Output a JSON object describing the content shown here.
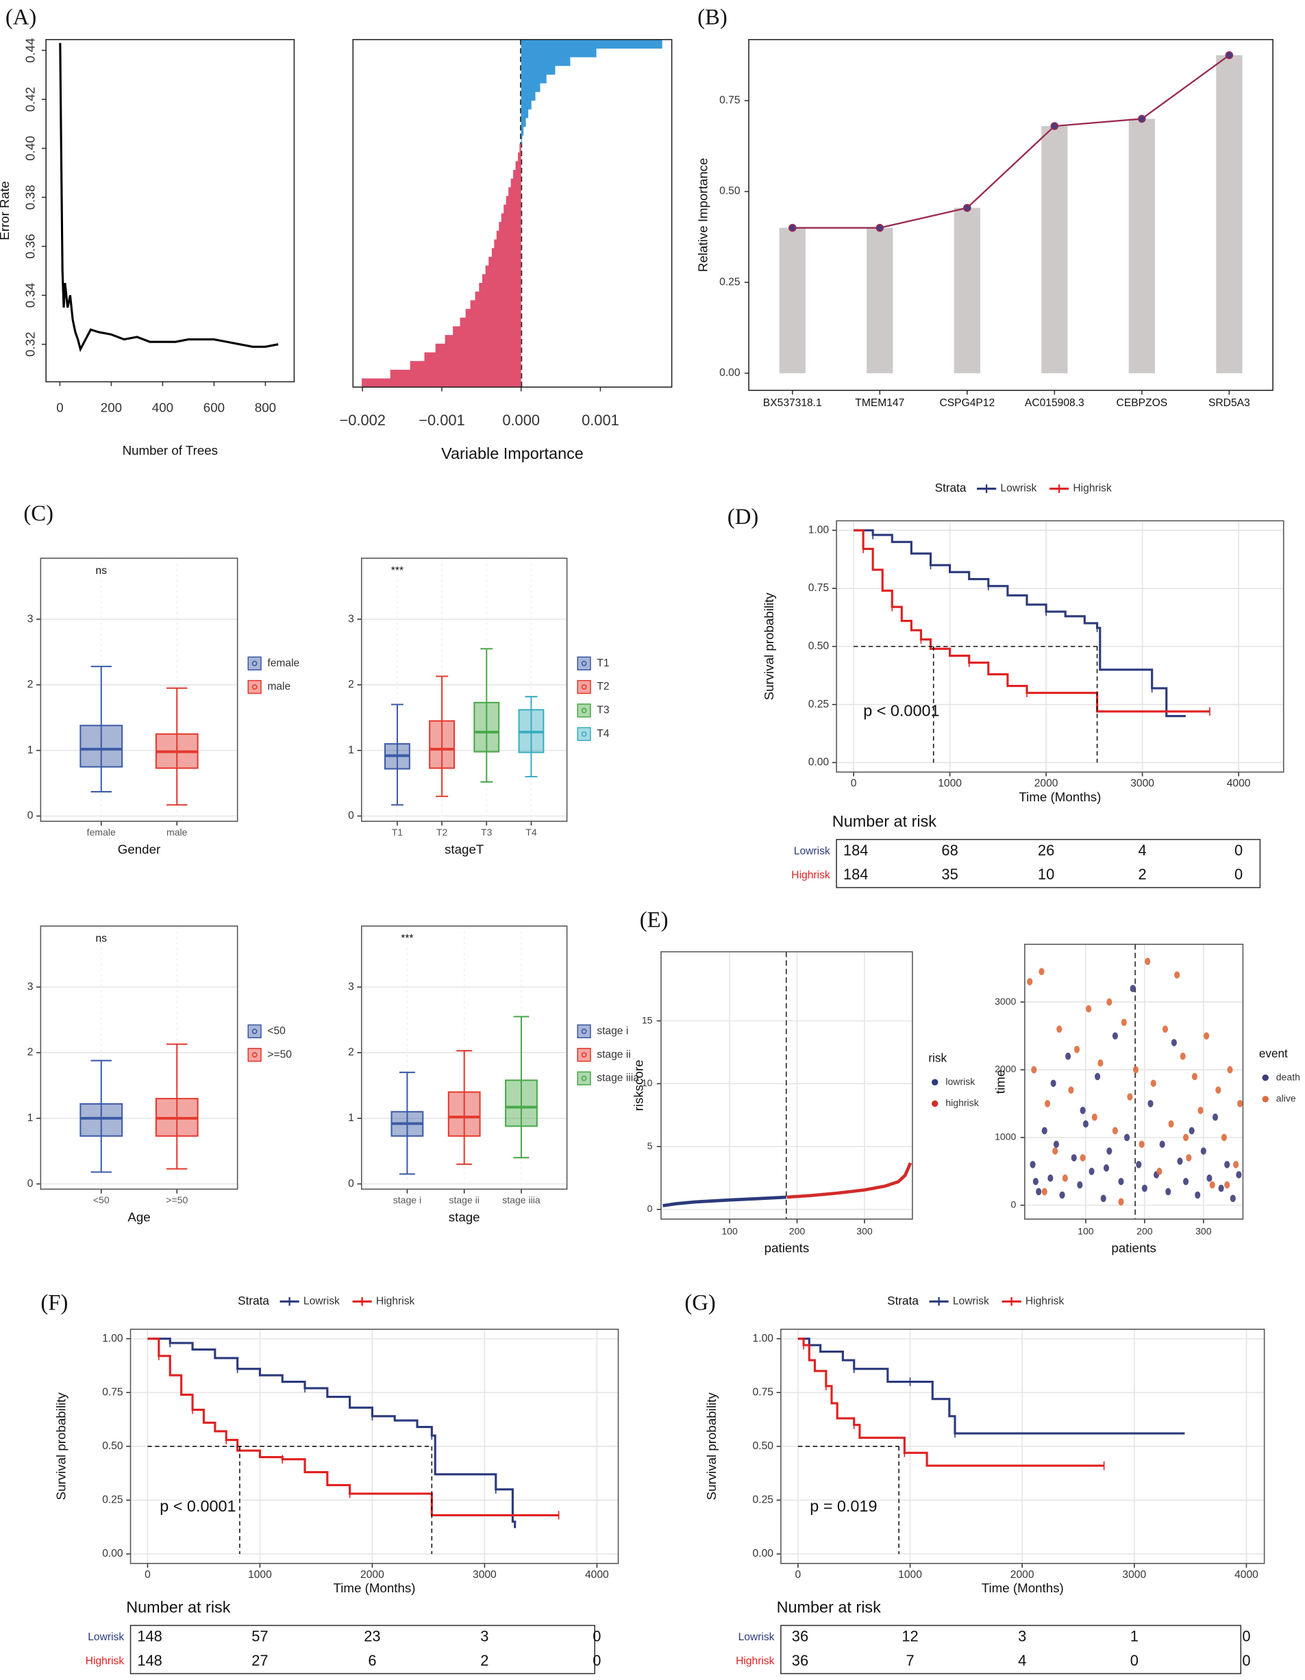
{
  "chart_data": [
    {
      "type": "line",
      "panel": "(A)",
      "xlabel": "Number of Trees",
      "ylabel": "Error Rate",
      "color": "#000000",
      "grid": false,
      "xlim": [
        -54,
        912
      ],
      "ylim": [
        0.3047,
        0.4444
      ],
      "xticks": [
        0,
        200,
        400,
        600,
        800
      ],
      "yticks": [
        0.32,
        0.34,
        0.36,
        0.38,
        {
          "value": 0.4,
          "label": "0.40"
        },
        0.42,
        0.44
      ],
      "x": [
        1,
        5,
        10,
        15,
        20,
        30,
        40,
        50,
        60,
        70,
        80,
        100,
        120,
        150,
        200,
        250,
        300,
        350,
        400,
        450,
        500,
        550,
        600,
        650,
        700,
        750,
        800,
        850
      ],
      "values": [
        0.443,
        0.4,
        0.35,
        0.335,
        0.345,
        0.335,
        0.34,
        0.33,
        0.325,
        0.322,
        0.318,
        0.322,
        0.326,
        0.325,
        0.324,
        0.322,
        0.323,
        0.321,
        0.321,
        0.321,
        0.322,
        0.322,
        0.322,
        0.321,
        0.32,
        0.319,
        0.319,
        0.32
      ]
    },
    {
      "type": "hbar",
      "xlabel": "Variable Importance",
      "grid": false,
      "reference_line": 0,
      "negative_color": "#e0506f",
      "positive_color": "#3a9ad9",
      "xlim": [
        -0.00212,
        0.0019
      ],
      "xticks": [
        {
          "value": -0.002,
          "label": "−0.002"
        },
        {
          "value": -0.001,
          "label": "−0.001"
        },
        {
          "value": 0,
          "label": "0.000"
        },
        {
          "value": 0.001,
          "label": "0.001"
        }
      ],
      "categories": [
        null,
        null,
        null,
        null,
        null,
        null,
        null,
        null,
        null,
        null,
        null,
        null,
        null,
        null,
        null,
        null,
        null,
        null,
        null,
        null,
        null,
        null,
        null,
        null,
        null,
        null,
        null,
        null,
        null,
        null,
        null,
        null,
        null,
        null,
        null,
        null,
        null,
        null,
        null,
        null
      ],
      "values": [
        -0.00201,
        -0.00165,
        -0.0014,
        -0.00122,
        -0.00108,
        -0.00096,
        -0.00086,
        -0.00077,
        -0.0007,
        -0.00064,
        -0.00058,
        -0.00053,
        -0.00049,
        -0.00045,
        -0.00041,
        -0.00037,
        -0.00034,
        -0.00031,
        -0.00028,
        -0.00025,
        -0.00022,
        -0.00019,
        -0.00016,
        -0.00013,
        -0.0001,
        -7e-05,
        -4e-05,
        -2e-05,
        1e-05,
        3e-05,
        6e-05,
        9e-05,
        0.00013,
        0.00018,
        0.00024,
        0.00032,
        0.00043,
        0.00062,
        0.00095,
        0.00178
      ]
    },
    {
      "type": "bar",
      "panel": "(B)",
      "ylabel": "Relative Importance",
      "grid": false,
      "color": "#cdc9c9",
      "line_color": "#9b2b50",
      "point_color": "#4b3b80",
      "categories": [
        "BX537318.1",
        "TMEM147",
        "CSPG4P12",
        "AC015908.3",
        "CEBPZOS",
        "SRD5A3"
      ],
      "values": [
        0.4,
        0.4,
        0.455,
        0.68,
        0.7,
        0.875
      ],
      "ylim": [
        -0.047,
        0.918
      ],
      "yticks": [
        {
          "value": 0,
          "label": "0.00"
        },
        {
          "value": 0.25,
          "label": "0.25"
        },
        {
          "value": 0.5,
          "label": "0.50"
        },
        {
          "value": 0.75,
          "label": "0.75"
        }
      ]
    },
    {
      "type": "box",
      "panel": "(C)",
      "xlabel": "Gender",
      "annotation": "ns",
      "grid": true,
      "categories": [
        "female",
        "male"
      ],
      "colors": [
        "#3b5ba5",
        "#e4392e"
      ],
      "boxes": [
        {
          "min": 0.37,
          "q1": 0.75,
          "median": 1.02,
          "q3": 1.38,
          "max": 2.28
        },
        {
          "min": 0.17,
          "q1": 0.73,
          "median": 0.98,
          "q3": 1.25,
          "max": 1.95
        }
      ],
      "ylim": [
        -0.08,
        3.93
      ],
      "yticks": [
        0,
        1,
        2,
        3
      ]
    },
    {
      "type": "box",
      "xlabel": "stageT",
      "annotation": "***",
      "grid": true,
      "categories": [
        "T1",
        "T2",
        "T3",
        "T4"
      ],
      "colors": [
        "#3b5ba5",
        "#e4392e",
        "#4aa84a",
        "#3aaec0"
      ],
      "boxes": [
        {
          "min": 0.17,
          "q1": 0.72,
          "median": 0.92,
          "q3": 1.1,
          "max": 1.7
        },
        {
          "min": 0.3,
          "q1": 0.73,
          "median": 1.02,
          "q3": 1.45,
          "max": 2.13
        },
        {
          "min": 0.52,
          "q1": 0.98,
          "median": 1.28,
          "q3": 1.73,
          "max": 2.55
        },
        {
          "min": 0.6,
          "q1": 0.97,
          "median": 1.28,
          "q3": 1.62,
          "max": 1.82
        }
      ],
      "ylim": [
        -0.08,
        3.93
      ],
      "yticks": [
        0,
        1,
        2,
        3
      ]
    },
    {
      "type": "box",
      "xlabel": "Age",
      "annotation": "ns",
      "grid": true,
      "categories": [
        "<50",
        ">=50"
      ],
      "colors": [
        "#3b5ba5",
        "#e4392e"
      ],
      "boxes": [
        {
          "min": 0.18,
          "q1": 0.73,
          "median": 1.0,
          "q3": 1.22,
          "max": 1.88
        },
        {
          "min": 0.23,
          "q1": 0.73,
          "median": 1.0,
          "q3": 1.3,
          "max": 2.13
        }
      ],
      "ylim": [
        -0.08,
        3.93
      ],
      "yticks": [
        0,
        1,
        2,
        3
      ]
    },
    {
      "type": "box",
      "xlabel": "stage",
      "annotation": "***",
      "grid": true,
      "categories": [
        "stage i",
        "stage ii",
        "stage iiia"
      ],
      "colors": [
        "#3b5ba5",
        "#e4392e",
        "#4aa84a"
      ],
      "boxes": [
        {
          "min": 0.15,
          "q1": 0.73,
          "median": 0.92,
          "q3": 1.1,
          "max": 1.7
        },
        {
          "min": 0.3,
          "q1": 0.73,
          "median": 1.02,
          "q3": 1.4,
          "max": 2.03
        },
        {
          "min": 0.4,
          "q1": 0.88,
          "median": 1.17,
          "q3": 1.58,
          "max": 2.55
        }
      ],
      "ylim": [
        -0.08,
        3.93
      ],
      "yticks": [
        0,
        1,
        2,
        3
      ]
    },
    {
      "type": "km",
      "panel": "(D)",
      "legend_title": "Strata",
      "xlabel": "Time (Months)",
      "ylabel": "Survival probability",
      "annotation": "p < 0.0001",
      "risk_table_title": "Number at risk",
      "grid": true,
      "xlim": [
        -178,
        4467
      ],
      "ylim": [
        -0.041,
        1.041
      ],
      "xticks": [
        0,
        1000,
        2000,
        3000,
        4000
      ],
      "yticks": [
        {
          "value": 0,
          "label": "0.00"
        },
        {
          "value": 0.25,
          "label": "0.25"
        },
        {
          "value": 0.5,
          "label": "0.50"
        },
        {
          "value": 0.75,
          "label": "0.75"
        },
        {
          "value": 1,
          "label": "1.00"
        }
      ],
      "median_y": 0.5,
      "median_x": [
        830,
        2530
      ],
      "series": [
        {
          "name": "Lowrisk",
          "color": "#2b3a7c",
          "x": [
            0,
            200,
            400,
            600,
            800,
            1000,
            1200,
            1400,
            1600,
            1800,
            2000,
            2200,
            2400,
            2530,
            2560,
            3000,
            3100,
            3250,
            3450
          ],
          "values": [
            1,
            0.98,
            0.95,
            0.9,
            0.85,
            0.82,
            0.79,
            0.76,
            0.72,
            0.68,
            0.65,
            0.63,
            0.6,
            0.58,
            0.4,
            0.4,
            0.32,
            0.2,
            0.2
          ],
          "at_risk": [
            184,
            68,
            26,
            4,
            0
          ]
        },
        {
          "name": "Highrisk",
          "color": "#e02020",
          "x": [
            0,
            100,
            200,
            300,
            400,
            500,
            600,
            700,
            800,
            1000,
            1200,
            1400,
            1600,
            1800,
            2500,
            2530,
            3700
          ],
          "values": [
            1,
            0.92,
            0.83,
            0.74,
            0.67,
            0.61,
            0.57,
            0.53,
            0.49,
            0.46,
            0.43,
            0.38,
            0.33,
            0.3,
            0.3,
            0.22,
            0.22
          ],
          "at_risk": [
            184,
            35,
            10,
            2,
            0
          ]
        }
      ]
    },
    {
      "type": "line",
      "panel": "(E)",
      "legend_title": "risk",
      "xlabel": "patients",
      "ylabel": "riskscore",
      "grid": true,
      "reference_line": 184,
      "xlim": [
        -1.6,
        371
      ],
      "ylim": [
        -0.77,
        20.5
      ],
      "xticks": [
        100,
        200,
        300
      ],
      "yticks": [
        0,
        5,
        10,
        15
      ],
      "series": [
        {
          "name": "lowrisk",
          "color": "#2b3a7c",
          "x": [
            1,
            20,
            50,
            100,
            150,
            184
          ],
          "values": [
            0.3,
            0.45,
            0.6,
            0.75,
            0.88,
            0.97
          ]
        },
        {
          "name": "highrisk",
          "color": "#d42a2a",
          "x": [
            185,
            220,
            260,
            300,
            330,
            350,
            360,
            365,
            368
          ],
          "values": [
            0.98,
            1.1,
            1.3,
            1.55,
            1.85,
            2.2,
            2.7,
            3.3,
            3.7
          ]
        }
      ]
    },
    {
      "type": "scatter",
      "legend_title": "event",
      "xlabel": "patients",
      "ylabel": "time",
      "grid": true,
      "reference_line": 184,
      "xlim": [
        -3.6,
        367
      ],
      "ylim": [
        -205,
        3853
      ],
      "xticks": [
        100,
        200,
        300
      ],
      "yticks": [
        0,
        1000,
        2000,
        3000
      ],
      "series": [
        {
          "name": "death",
          "color": "#3d3d7a",
          "x": [
            10,
            20,
            30,
            40,
            50,
            60,
            70,
            80,
            90,
            100,
            110,
            120,
            130,
            140,
            150,
            160,
            170,
            180,
            190,
            200,
            210,
            220,
            230,
            240,
            250,
            260,
            270,
            280,
            290,
            300,
            310,
            320,
            330,
            340,
            350,
            360,
            15,
            45,
            95,
            135
          ],
          "values": [
            600,
            200,
            1100,
            400,
            900,
            150,
            2200,
            700,
            300,
            1200,
            500,
            1900,
            100,
            800,
            2500,
            350,
            1000,
            3200,
            600,
            250,
            1500,
            450,
            900,
            200,
            2400,
            650,
            350,
            1100,
            150,
            800,
            400,
            1300,
            250,
            600,
            100,
            450,
            350,
            1800,
            1400,
            550
          ]
        },
        {
          "name": "alive",
          "color": "#de6a3c",
          "x": [
            5,
            12,
            25,
            35,
            48,
            55,
            65,
            75,
            85,
            95,
            105,
            115,
            125,
            140,
            150,
            165,
            175,
            185,
            195,
            205,
            215,
            225,
            235,
            245,
            255,
            265,
            275,
            285,
            295,
            305,
            315,
            325,
            335,
            345,
            355,
            362,
            30,
            160,
            270,
            340
          ],
          "values": [
            3300,
            2000,
            3450,
            1500,
            800,
            2600,
            400,
            1700,
            2300,
            700,
            2900,
            1300,
            2100,
            3000,
            1100,
            2700,
            1600,
            2000,
            900,
            3600,
            1800,
            500,
            2600,
            1200,
            3400,
            2200,
            700,
            1900,
            1400,
            2500,
            300,
            1700,
            1000,
            2000,
            600,
            1500,
            200,
            50,
            1000,
            300
          ]
        }
      ]
    },
    {
      "type": "km",
      "panel": "(F)",
      "legend_title": "Strata",
      "xlabel": "Time (Months)",
      "ylabel": "Survival probability",
      "annotation": "p < 0.0001",
      "risk_table_title": "Number at risk",
      "grid": true,
      "xlim": [
        -152,
        4190
      ],
      "ylim": [
        -0.044,
        1.044
      ],
      "xticks": [
        0,
        1000,
        2000,
        3000,
        4000
      ],
      "yticks": [
        {
          "value": 0,
          "label": "0.00"
        },
        {
          "value": 0.25,
          "label": "0.25"
        },
        {
          "value": 0.5,
          "label": "0.50"
        },
        {
          "value": 0.75,
          "label": "0.75"
        },
        {
          "value": 1,
          "label": "1.00"
        }
      ],
      "median_y": 0.5,
      "median_x": [
        820,
        2530
      ],
      "series": [
        {
          "name": "Lowrisk",
          "color": "#2b3a7c",
          "x": [
            0,
            200,
            400,
            600,
            800,
            1000,
            1200,
            1400,
            1600,
            1800,
            2000,
            2200,
            2400,
            2530,
            2560,
            3000,
            3100,
            3250,
            3270
          ],
          "values": [
            1,
            0.98,
            0.95,
            0.91,
            0.86,
            0.83,
            0.8,
            0.77,
            0.73,
            0.68,
            0.64,
            0.62,
            0.59,
            0.55,
            0.37,
            0.37,
            0.3,
            0.15,
            0.12
          ],
          "at_risk": [
            148,
            57,
            23,
            3,
            0
          ]
        },
        {
          "name": "Highrisk",
          "color": "#e02020",
          "x": [
            0,
            100,
            200,
            300,
            400,
            500,
            600,
            700,
            800,
            1000,
            1200,
            1400,
            1600,
            1800,
            2500,
            2530,
            3660
          ],
          "values": [
            1,
            0.92,
            0.83,
            0.74,
            0.67,
            0.61,
            0.57,
            0.53,
            0.48,
            0.45,
            0.44,
            0.38,
            0.32,
            0.28,
            0.28,
            0.18,
            0.18
          ],
          "at_risk": [
            148,
            27,
            6,
            2,
            0
          ]
        }
      ]
    },
    {
      "type": "km",
      "panel": "(G)",
      "legend_title": "Strata",
      "xlabel": "Time (Months)",
      "ylabel": "Survival probability",
      "annotation": "p = 0.019",
      "risk_table_title": "Number at risk",
      "grid": true,
      "xlim": [
        -153,
        4160
      ],
      "ylim": [
        -0.044,
        1.044
      ],
      "xticks": [
        0,
        1000,
        2000,
        3000,
        4000
      ],
      "yticks": [
        {
          "value": 0,
          "label": "0.00"
        },
        {
          "value": 0.25,
          "label": "0.25"
        },
        {
          "value": 0.5,
          "label": "0.50"
        },
        {
          "value": 0.75,
          "label": "0.75"
        },
        {
          "value": 1,
          "label": "1.00"
        }
      ],
      "median_y": 0.5,
      "median_x": [
        900
      ],
      "series": [
        {
          "name": "Lowrisk",
          "color": "#2b3a7c",
          "x": [
            0,
            100,
            200,
            400,
            500,
            700,
            800,
            1000,
            1200,
            1350,
            1400,
            3450
          ],
          "values": [
            1,
            0.97,
            0.94,
            0.9,
            0.86,
            0.86,
            0.8,
            0.8,
            0.72,
            0.64,
            0.56,
            0.56
          ],
          "at_risk": [
            36,
            12,
            3,
            1,
            0
          ]
        },
        {
          "name": "Highrisk",
          "color": "#e02020",
          "x": [
            0,
            50,
            100,
            150,
            250,
            300,
            350,
            500,
            550,
            900,
            950,
            1100,
            1150,
            2730
          ],
          "values": [
            1,
            0.97,
            0.9,
            0.85,
            0.78,
            0.7,
            0.63,
            0.6,
            0.54,
            0.54,
            0.47,
            0.47,
            0.41,
            0.41
          ],
          "at_risk": [
            36,
            7,
            4,
            0,
            0
          ]
        }
      ]
    }
  ]
}
